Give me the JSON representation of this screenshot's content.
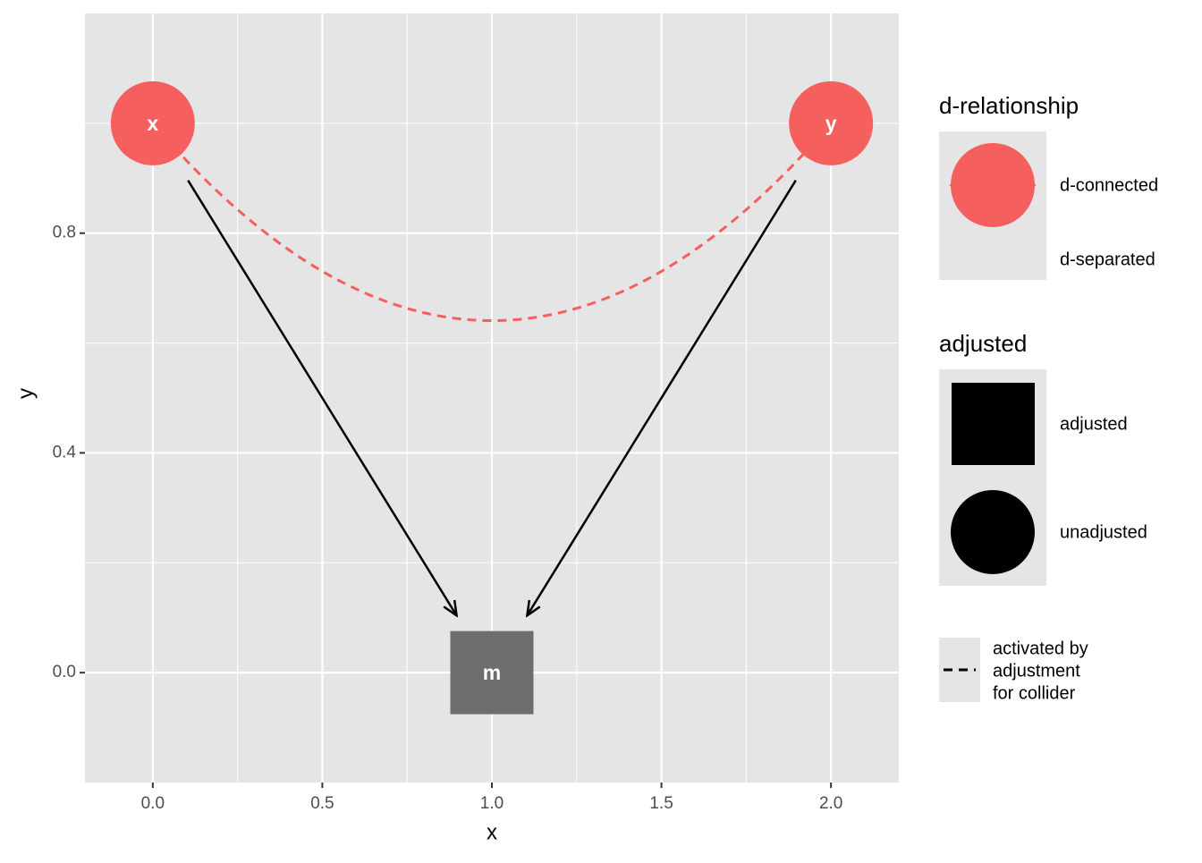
{
  "chart_data": {
    "type": "dag",
    "x_label": "x",
    "y_label": "y",
    "xlim": [
      -0.2,
      2.2
    ],
    "ylim": [
      -0.2,
      1.2
    ],
    "xticks": [
      {
        "value": 0,
        "label": "0.0"
      },
      {
        "value": 0.5,
        "label": "0.5"
      },
      {
        "value": 1,
        "label": "1.0"
      },
      {
        "value": 1.5,
        "label": "1.5"
      },
      {
        "value": 2,
        "label": "2.0"
      }
    ],
    "yticks": [
      {
        "value": 0,
        "label": "0.0"
      },
      {
        "value": 0.4,
        "label": "0.4"
      },
      {
        "value": 0.8,
        "label": "0.8"
      }
    ],
    "grid": true,
    "nodes": [
      {
        "name": "x",
        "x": 0,
        "y": 1,
        "shape": "circle",
        "color": "#f5605e"
      },
      {
        "name": "y",
        "x": 2,
        "y": 1,
        "shape": "circle",
        "color": "#f5605e"
      },
      {
        "name": "m",
        "x": 1,
        "y": 0,
        "shape": "square",
        "color": "#6d6d6d"
      }
    ],
    "edges": [
      {
        "from": 0,
        "to": 2
      },
      {
        "from": 1,
        "to": 2
      }
    ],
    "collider_paths": [
      {
        "from": 0,
        "to": 1,
        "color": "#f5605e"
      }
    ],
    "legends": [
      {
        "title": "d-relationship",
        "labels": [
          "d-connected",
          "d-separated"
        ],
        "color": "#f5605e"
      },
      {
        "title": "adjusted",
        "labels": [
          "adjusted",
          "unadjusted"
        ],
        "color": "#000000"
      },
      {
        "lines": [
          "activated by",
          "adjustment",
          "for collider"
        ]
      }
    ]
  }
}
